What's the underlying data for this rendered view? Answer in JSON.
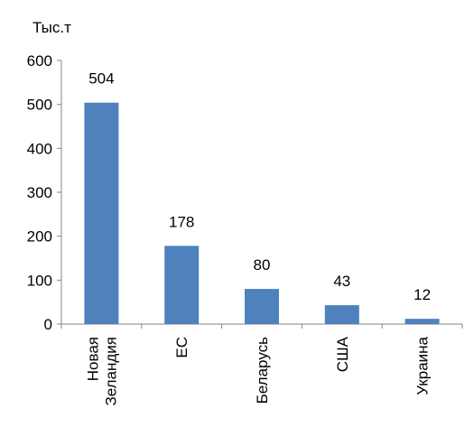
{
  "chart_data": {
    "type": "bar",
    "unit_label": "Тыс.т",
    "categories": [
      "Новая Зеландия",
      "ЕС",
      "Беларусь",
      "США",
      "Украина"
    ],
    "category_lines": [
      [
        "Новая",
        "Зеландия"
      ],
      [
        "ЕС"
      ],
      [
        "Беларусь"
      ],
      [
        "США"
      ],
      [
        "Украина"
      ]
    ],
    "values": [
      504,
      178,
      80,
      43,
      12
    ],
    "data_labels": [
      "504",
      "178",
      "80",
      "43",
      "12"
    ],
    "yticks": [
      0,
      100,
      200,
      300,
      400,
      500,
      600
    ],
    "ylim": [
      0,
      600
    ],
    "grid": false,
    "legend": "none",
    "bar_color": "#4f81bd",
    "axis_color": "#868686"
  }
}
